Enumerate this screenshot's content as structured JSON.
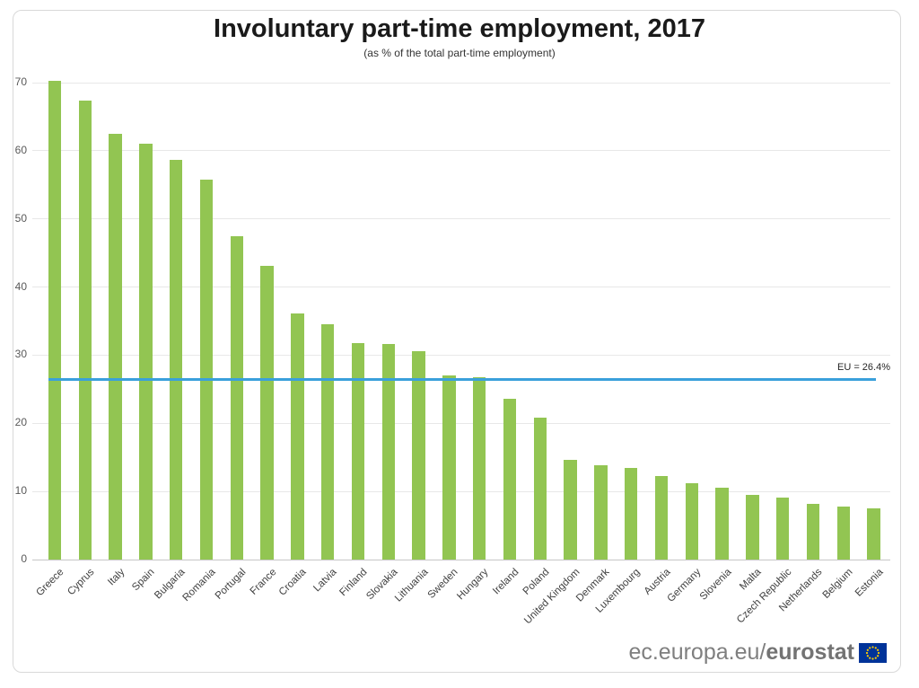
{
  "chart": {
    "title": "Involuntary part-time employment, 2017",
    "subtitle": "(as % of the total part-time employment)",
    "eu_label": "EU = 26.4%"
  },
  "chart_data": {
    "type": "bar",
    "title": "Involuntary part-time employment, 2017",
    "subtitle": "(as % of the total part-time employment)",
    "categories": [
      "Greece",
      "Cyprus",
      "Italy",
      "Spain",
      "Bulgaria",
      "Romania",
      "Portugal",
      "France",
      "Croatia",
      "Latvia",
      "Finland",
      "Slovakia",
      "Lithuania",
      "Sweden",
      "Hungary",
      "Ireland",
      "Poland",
      "United Kingdom",
      "Denmark",
      "Luxembourg",
      "Austria",
      "Germany",
      "Slovenia",
      "Malta",
      "Czech Republic",
      "Netherlands",
      "Belgium",
      "Estonia"
    ],
    "values": [
      70.2,
      67.4,
      62.5,
      61.1,
      58.7,
      55.8,
      47.5,
      43.1,
      36.1,
      34.6,
      31.8,
      31.6,
      30.6,
      27.0,
      26.7,
      23.6,
      20.8,
      14.6,
      13.9,
      13.4,
      12.3,
      11.2,
      10.6,
      9.5,
      9.1,
      8.2,
      7.8,
      7.5
    ],
    "xlabel": "",
    "ylabel": "",
    "ylim": [
      0,
      70
    ],
    "yticks": [
      0,
      10,
      20,
      30,
      40,
      50,
      60,
      70
    ],
    "grid": true,
    "legend": "none",
    "bar_color": "#92c552",
    "reference_line": {
      "label": "EU = 26.4%",
      "value": 26.4,
      "color": "#3aa0db"
    }
  },
  "footer": {
    "url_regular": "ec.europa.eu/",
    "url_bold": "eurostat",
    "flag_icon": "eu-flag-icon",
    "flag_blue": "#003399",
    "flag_stars": "#ffcc00"
  }
}
